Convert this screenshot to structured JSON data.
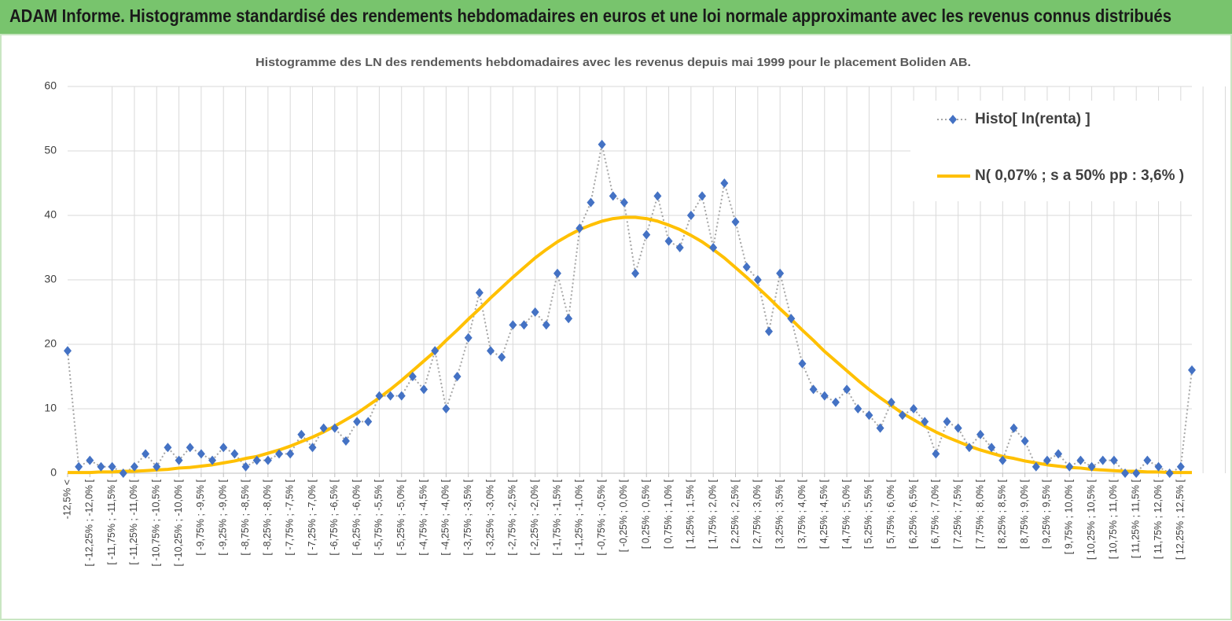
{
  "header": {
    "title": "ADAM Informe. Histogramme standardisé des rendements hebdomadaires en euros et une loi normale approximante avec les revenus connus distribués"
  },
  "chart_data": {
    "type": "line",
    "title": "Histogramme des LN des rendements hebdomadaires avec les revenus depuis mai 1999 pour le placement Boliden AB.",
    "categories": [
      "-12,5% <",
      null,
      "[ -12,25% ; -12,0% [",
      null,
      "[ -11,75% ; -11,5% [",
      null,
      "[ -11,25% ; -11,0% [",
      null,
      "[ -10,75% ; -10,5% [",
      null,
      "[ -10,25% ; -10,0% [",
      null,
      "[ -9,75% ; -9,5% [",
      null,
      "[ -9,25% ; -9,0% [",
      null,
      "[ -8,75% ; -8,5% [",
      null,
      "[ -8,25% ; -8,0% [",
      null,
      "[ -7,75% ; -7,5% [",
      null,
      "[ -7,25% ; -7,0% [",
      null,
      "[ -6,75% ; -6,5% [",
      null,
      "[ -6,25% ; -6,0% [",
      null,
      "[ -5,75% ; -5,5% [",
      null,
      "[ -5,25% ; -5,0% [",
      null,
      "[ -4,75% ; -4,5% [",
      null,
      "[ -4,25% ; -4,0% [",
      null,
      "[ -3,75% ; -3,5% [",
      null,
      "[ -3,25% ; -3,0% [",
      null,
      "[ -2,75% ; -2,5% [",
      null,
      "[ -2,25% ; -2,0% [",
      null,
      "[ -1,75% ; -1,5% [",
      null,
      "[ -1,25% ; -1,0% [",
      null,
      "[ -0,75% ; -0,5% [",
      null,
      "[ -0,25% ; 0,0% [",
      null,
      "[ 0,25% ; 0,5% [",
      null,
      "[ 0,75% ; 1,0% [",
      null,
      "[ 1,25% ; 1,5% [",
      null,
      "[ 1,75% ; 2,0% [",
      null,
      "[ 2,25% ; 2,5% [",
      null,
      "[ 2,75% ; 3,0% [",
      null,
      "[ 3,25% ; 3,5% [",
      null,
      "[ 3,75% ; 4,0% [",
      null,
      "[ 4,25% ; 4,5% [",
      null,
      "[ 4,75% ; 5,0% [",
      null,
      "[ 5,25% ; 5,5% [",
      null,
      "[ 5,75% ; 6,0% [",
      null,
      "[ 6,25% ; 6,5% [",
      null,
      "[ 6,75% ; 7,0% [",
      null,
      "[ 7,25% ; 7,5% [",
      null,
      "[ 7,75% ; 8,0% [",
      null,
      "[ 8,25% ; 8,5% [",
      null,
      "[ 8,75% ; 9,0% [",
      null,
      "[ 9,25% ; 9,5% [",
      null,
      "[ 9,75% ; 10,0% [",
      null,
      "[ 10,25% ; 10,5% [",
      null,
      "[ 10,75% ; 11,0% [",
      null,
      "[ 11,25% ; 11,5% [",
      null,
      "[ 11,75% ; 12,0% [",
      null,
      "[ 12,25% ; 12,5% [",
      null
    ],
    "series": [
      {
        "name": "Histo[ ln(renta) ]",
        "color": "#4472c4",
        "line_color": "#a6a6a6",
        "values": [
          19,
          1,
          2,
          1,
          1,
          0,
          1,
          3,
          1,
          4,
          2,
          4,
          3,
          2,
          4,
          3,
          1,
          2,
          2,
          3,
          3,
          6,
          4,
          7,
          7,
          5,
          8,
          8,
          12,
          12,
          12,
          15,
          13,
          19,
          10,
          15,
          21,
          28,
          19,
          18,
          23,
          23,
          25,
          23,
          31,
          24,
          38,
          42,
          51,
          43,
          42,
          31,
          37,
          43,
          36,
          35,
          40,
          43,
          35,
          45,
          39,
          32,
          30,
          22,
          31,
          24,
          17,
          13,
          12,
          11,
          13,
          10,
          9,
          7,
          11,
          9,
          10,
          8,
          3,
          8,
          7,
          4,
          6,
          4,
          2,
          7,
          5,
          1,
          2,
          3,
          1,
          2,
          1,
          2,
          2,
          0,
          0,
          2,
          1,
          0,
          1,
          16
        ]
      },
      {
        "name": "N( 0,07% ; s a 50% pp : 3,6% )",
        "color": "#ffc000",
        "values": [
          0.1,
          0.1,
          0.1,
          0.2,
          0.2,
          0.3,
          0.3,
          0.4,
          0.5,
          0.6,
          0.8,
          0.9,
          1.1,
          1.3,
          1.6,
          1.9,
          2.3,
          2.6,
          3.1,
          3.6,
          4.2,
          4.9,
          5.6,
          6.4,
          7.3,
          8.3,
          9.3,
          10.5,
          11.7,
          13.0,
          14.4,
          15.9,
          17.4,
          18.9,
          20.6,
          22.2,
          23.9,
          25.5,
          27.2,
          28.8,
          30.4,
          31.9,
          33.4,
          34.7,
          35.9,
          36.9,
          37.8,
          38.5,
          39.1,
          39.5,
          39.7,
          39.7,
          39.5,
          39.1,
          38.5,
          37.8,
          36.9,
          35.9,
          34.7,
          33.4,
          31.9,
          30.4,
          28.8,
          27.2,
          25.5,
          23.9,
          22.2,
          20.6,
          18.9,
          17.4,
          15.9,
          14.4,
          13.0,
          11.7,
          10.5,
          9.3,
          8.3,
          7.3,
          6.4,
          5.6,
          4.9,
          4.2,
          3.6,
          3.1,
          2.6,
          2.3,
          1.9,
          1.6,
          1.3,
          1.1,
          0.9,
          0.8,
          0.6,
          0.5,
          0.4,
          0.3,
          0.3,
          0.2,
          0.2,
          0.1,
          0.1,
          0.1
        ]
      }
    ],
    "ylim": [
      0,
      60
    ],
    "yticks": [
      0,
      10,
      20,
      30,
      40,
      50,
      60
    ],
    "grid": true,
    "legend": "top-right"
  }
}
